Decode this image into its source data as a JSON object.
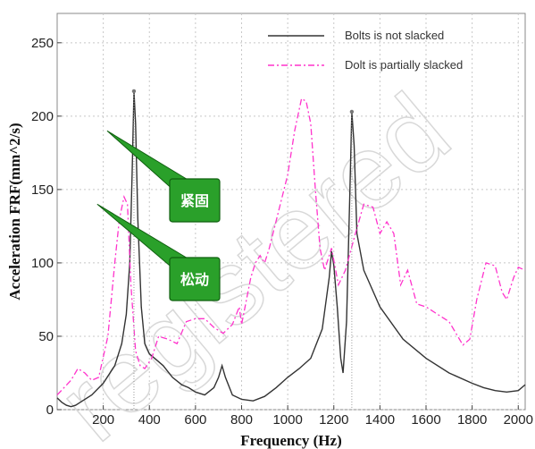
{
  "chart_data": {
    "type": "line",
    "title": "",
    "xlabel": "Frequency (Hz)",
    "ylabel": "Acceleration FRF(mm^2/s)",
    "xlim": [
      0,
      2030
    ],
    "ylim": [
      0,
      270
    ],
    "xticks": [
      200,
      400,
      600,
      800,
      1000,
      1200,
      1400,
      1600,
      1800,
      2000
    ],
    "yticks": [
      0,
      50,
      100,
      150,
      200,
      250
    ],
    "grid": true,
    "legend_position": "top-right",
    "series": [
      {
        "name": "Bolts is not slacked",
        "color": "#333333",
        "style": "solid",
        "points": [
          [
            0,
            8
          ],
          [
            20,
            5
          ],
          [
            40,
            3
          ],
          [
            60,
            2
          ],
          [
            80,
            3
          ],
          [
            100,
            5
          ],
          [
            150,
            10
          ],
          [
            200,
            18
          ],
          [
            250,
            30
          ],
          [
            280,
            45
          ],
          [
            300,
            65
          ],
          [
            315,
            100
          ],
          [
            325,
            160
          ],
          [
            333,
            217
          ],
          [
            340,
            195
          ],
          [
            350,
            130
          ],
          [
            365,
            70
          ],
          [
            380,
            45
          ],
          [
            400,
            38
          ],
          [
            430,
            34
          ],
          [
            460,
            30
          ],
          [
            500,
            22
          ],
          [
            540,
            17
          ],
          [
            570,
            15
          ],
          [
            600,
            12
          ],
          [
            640,
            10
          ],
          [
            680,
            15
          ],
          [
            700,
            22
          ],
          [
            715,
            30
          ],
          [
            730,
            22
          ],
          [
            760,
            10
          ],
          [
            800,
            7
          ],
          [
            850,
            6
          ],
          [
            900,
            9
          ],
          [
            950,
            15
          ],
          [
            1000,
            22
          ],
          [
            1050,
            28
          ],
          [
            1100,
            35
          ],
          [
            1150,
            55
          ],
          [
            1180,
            90
          ],
          [
            1190,
            108
          ],
          [
            1200,
            98
          ],
          [
            1215,
            70
          ],
          [
            1230,
            35
          ],
          [
            1240,
            25
          ],
          [
            1255,
            60
          ],
          [
            1270,
            150
          ],
          [
            1278,
            203
          ],
          [
            1288,
            180
          ],
          [
            1300,
            120
          ],
          [
            1330,
            95
          ],
          [
            1400,
            70
          ],
          [
            1500,
            48
          ],
          [
            1600,
            35
          ],
          [
            1700,
            25
          ],
          [
            1800,
            18
          ],
          [
            1850,
            15
          ],
          [
            1900,
            13
          ],
          [
            1950,
            12
          ],
          [
            2000,
            13
          ],
          [
            2030,
            17
          ]
        ]
      },
      {
        "name": "Dolt is partially slacked",
        "color": "#ff33cc",
        "style": "dashed",
        "points": [
          [
            0,
            10
          ],
          [
            30,
            15
          ],
          [
            60,
            20
          ],
          [
            90,
            28
          ],
          [
            120,
            25
          ],
          [
            150,
            20
          ],
          [
            180,
            22
          ],
          [
            220,
            50
          ],
          [
            250,
            100
          ],
          [
            270,
            130
          ],
          [
            290,
            145
          ],
          [
            305,
            140
          ],
          [
            320,
            85
          ],
          [
            340,
            40
          ],
          [
            360,
            30
          ],
          [
            380,
            28
          ],
          [
            410,
            35
          ],
          [
            440,
            50
          ],
          [
            480,
            48
          ],
          [
            520,
            45
          ],
          [
            560,
            60
          ],
          [
            600,
            62
          ],
          [
            640,
            62
          ],
          [
            680,
            56
          ],
          [
            720,
            52
          ],
          [
            760,
            58
          ],
          [
            790,
            70
          ],
          [
            800,
            58
          ],
          [
            840,
            90
          ],
          [
            860,
            100
          ],
          [
            880,
            105
          ],
          [
            900,
            100
          ],
          [
            920,
            110
          ],
          [
            960,
            135
          ],
          [
            1000,
            160
          ],
          [
            1030,
            190
          ],
          [
            1060,
            212
          ],
          [
            1080,
            210
          ],
          [
            1100,
            195
          ],
          [
            1120,
            150
          ],
          [
            1140,
            110
          ],
          [
            1160,
            95
          ],
          [
            1190,
            110
          ],
          [
            1220,
            85
          ],
          [
            1250,
            95
          ],
          [
            1290,
            118
          ],
          [
            1330,
            140
          ],
          [
            1370,
            138
          ],
          [
            1400,
            120
          ],
          [
            1430,
            128
          ],
          [
            1460,
            120
          ],
          [
            1490,
            85
          ],
          [
            1520,
            95
          ],
          [
            1560,
            72
          ],
          [
            1600,
            70
          ],
          [
            1650,
            65
          ],
          [
            1700,
            60
          ],
          [
            1760,
            44
          ],
          [
            1790,
            48
          ],
          [
            1820,
            75
          ],
          [
            1860,
            100
          ],
          [
            1900,
            98
          ],
          [
            1930,
            80
          ],
          [
            1950,
            75
          ],
          [
            1980,
            90
          ],
          [
            2000,
            97
          ],
          [
            2030,
            95
          ]
        ]
      }
    ],
    "markers": [
      {
        "name": "Bolts is not slacked peak",
        "x": 333,
        "y": 217
      },
      {
        "name": "Bolts is not slacked peak 2",
        "x": 1278,
        "y": 203
      }
    ],
    "annotations": [
      {
        "label": "紧固",
        "target": [
          333,
          190
        ],
        "anchor": [
          210,
          160
        ]
      },
      {
        "label": "松动",
        "target": [
          290,
          140
        ],
        "anchor": [
          210,
          100
        ]
      }
    ]
  },
  "watermark": "registered"
}
